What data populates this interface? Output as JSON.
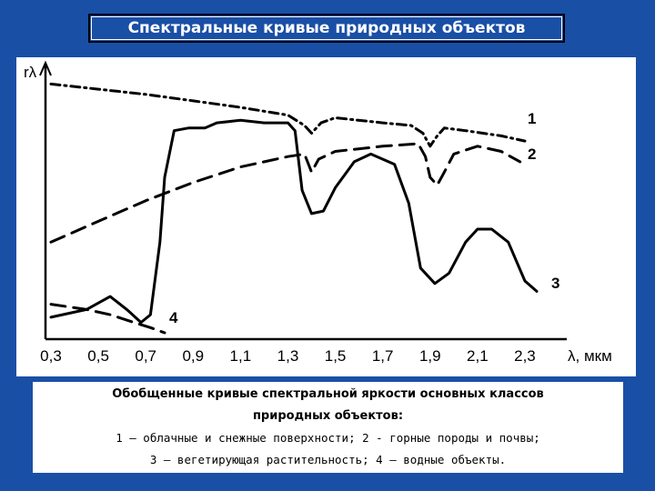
{
  "header": {
    "title": "Спектральные кривые природных объектов"
  },
  "caption": {
    "line1": "Обобщенные кривые спектральной яркости основных классов",
    "line2": "природных объектов:",
    "line3": "1 – облачные и снежные поверхности; 2 - горные породы и почвы;",
    "line4": "3 – вегетирующая растительность; 4 – водные объекты."
  },
  "chart_data": {
    "type": "line",
    "title": "",
    "xlabel": "λ, мкм",
    "ylabel": "rλ",
    "xlim": [
      0.3,
      2.4
    ],
    "ylim": [
      0,
      1.0
    ],
    "x_ticks": [
      "0,3",
      "0,5",
      "0,7",
      "0,9",
      "1,1",
      "1,3",
      "1,5",
      "1,7",
      "1,9",
      "2,1",
      "2,3"
    ],
    "grid": false,
    "series": [
      {
        "name": "1",
        "style": "dash-dot",
        "points": [
          [
            0.3,
            0.96
          ],
          [
            0.5,
            0.94
          ],
          [
            0.7,
            0.92
          ],
          [
            0.9,
            0.895
          ],
          [
            1.1,
            0.87
          ],
          [
            1.3,
            0.84
          ],
          [
            1.37,
            0.8
          ],
          [
            1.4,
            0.77
          ],
          [
            1.44,
            0.81
          ],
          [
            1.5,
            0.83
          ],
          [
            1.7,
            0.81
          ],
          [
            1.82,
            0.8
          ],
          [
            1.87,
            0.77
          ],
          [
            1.9,
            0.72
          ],
          [
            1.93,
            0.76
          ],
          [
            1.96,
            0.79
          ],
          [
            2.05,
            0.78
          ],
          [
            2.2,
            0.76
          ],
          [
            2.3,
            0.74
          ]
        ]
      },
      {
        "name": "2",
        "style": "dashed",
        "points": [
          [
            0.3,
            0.35
          ],
          [
            0.5,
            0.43
          ],
          [
            0.7,
            0.51
          ],
          [
            0.9,
            0.58
          ],
          [
            1.1,
            0.64
          ],
          [
            1.3,
            0.68
          ],
          [
            1.37,
            0.69
          ],
          [
            1.4,
            0.62
          ],
          [
            1.43,
            0.67
          ],
          [
            1.5,
            0.7
          ],
          [
            1.7,
            0.72
          ],
          [
            1.85,
            0.73
          ],
          [
            1.88,
            0.68
          ],
          [
            1.9,
            0.6
          ],
          [
            1.93,
            0.57
          ],
          [
            1.96,
            0.62
          ],
          [
            2.0,
            0.69
          ],
          [
            2.1,
            0.72
          ],
          [
            2.2,
            0.7
          ],
          [
            2.28,
            0.66
          ]
        ]
      },
      {
        "name": "3",
        "style": "solid",
        "points": [
          [
            0.3,
            0.06
          ],
          [
            0.45,
            0.09
          ],
          [
            0.55,
            0.14
          ],
          [
            0.62,
            0.09
          ],
          [
            0.68,
            0.04
          ],
          [
            0.72,
            0.07
          ],
          [
            0.76,
            0.35
          ],
          [
            0.78,
            0.6
          ],
          [
            0.82,
            0.78
          ],
          [
            0.88,
            0.79
          ],
          [
            0.95,
            0.79
          ],
          [
            1.0,
            0.81
          ],
          [
            1.1,
            0.82
          ],
          [
            1.2,
            0.81
          ],
          [
            1.3,
            0.81
          ],
          [
            1.33,
            0.78
          ],
          [
            1.36,
            0.55
          ],
          [
            1.4,
            0.46
          ],
          [
            1.45,
            0.47
          ],
          [
            1.5,
            0.56
          ],
          [
            1.58,
            0.66
          ],
          [
            1.65,
            0.69
          ],
          [
            1.75,
            0.65
          ],
          [
            1.81,
            0.5
          ],
          [
            1.86,
            0.25
          ],
          [
            1.92,
            0.19
          ],
          [
            1.98,
            0.23
          ],
          [
            2.05,
            0.35
          ],
          [
            2.1,
            0.4
          ],
          [
            2.16,
            0.4
          ],
          [
            2.23,
            0.35
          ],
          [
            2.3,
            0.2
          ],
          [
            2.35,
            0.16
          ]
        ]
      },
      {
        "name": "4",
        "style": "dashed",
        "points": [
          [
            0.3,
            0.11
          ],
          [
            0.45,
            0.09
          ],
          [
            0.55,
            0.07
          ],
          [
            0.65,
            0.04
          ],
          [
            0.72,
            0.02
          ],
          [
            0.78,
            0.0
          ]
        ]
      }
    ]
  }
}
